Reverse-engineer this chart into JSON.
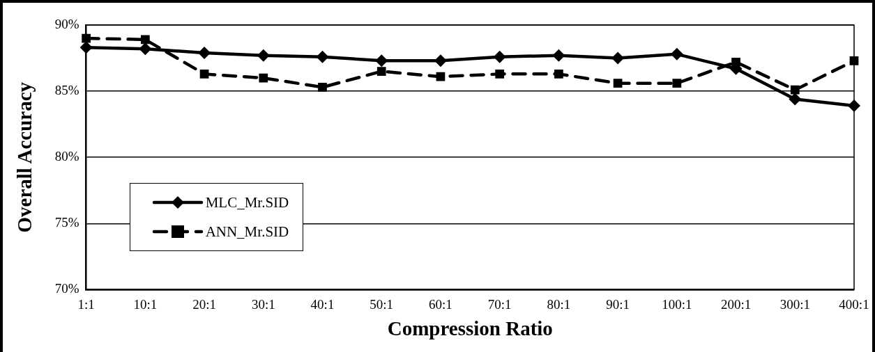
{
  "chart_data": {
    "type": "line",
    "xlabel": "Compression Ratio",
    "ylabel": "Overall Accuracy",
    "categories": [
      "1:1",
      "10:1",
      "20:1",
      "30:1",
      "40:1",
      "50:1",
      "60:1",
      "70:1",
      "80:1",
      "90:1",
      "100:1",
      "200:1",
      "300:1",
      "400:1"
    ],
    "series": [
      {
        "name": "MLC_Mr.SID",
        "color": "#000000",
        "marker": "diamond",
        "line_style": "solid",
        "values": [
          88.3,
          88.2,
          87.9,
          87.7,
          87.6,
          87.3,
          87.3,
          87.6,
          87.7,
          87.5,
          87.8,
          86.7,
          84.4,
          83.9
        ]
      },
      {
        "name": "ANN_Mr.SID",
        "color": "#000000",
        "marker": "square",
        "line_style": "dashed",
        "values": [
          89.0,
          88.9,
          86.3,
          86.0,
          85.3,
          86.5,
          86.1,
          86.3,
          86.3,
          85.6,
          85.6,
          87.2,
          85.1,
          87.3
        ]
      }
    ],
    "ylim": [
      70,
      90
    ],
    "yticks": [
      {
        "value": 70,
        "label": "70%"
      },
      {
        "value": 75,
        "label": "75%"
      },
      {
        "value": 80,
        "label": "80%"
      },
      {
        "value": 85,
        "label": "85%"
      },
      {
        "value": 90,
        "label": "90%"
      }
    ],
    "grid": "y",
    "legend": "bottom left"
  }
}
